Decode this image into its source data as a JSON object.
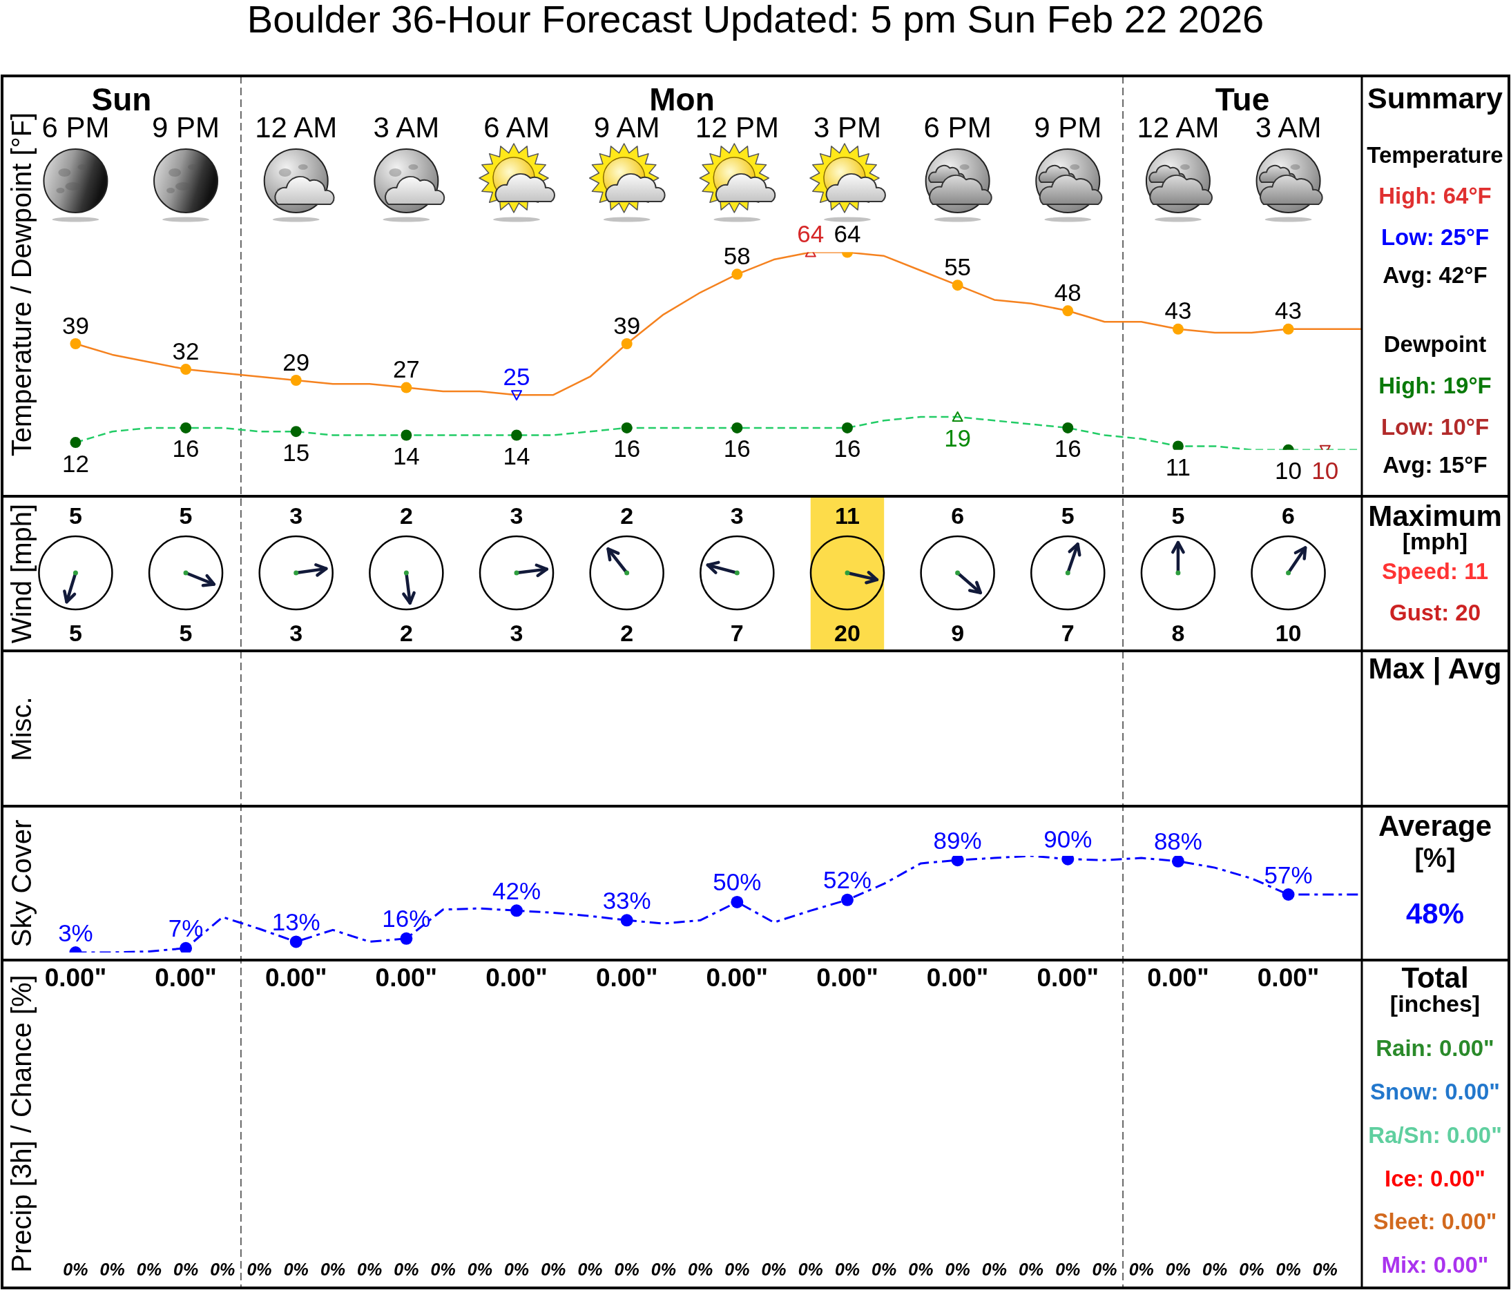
{
  "chart_data": [
    {
      "type": "line",
      "title": "Boulder 36-Hour Forecast Updated: 5 pm Sun Feb 22 2026",
      "ylabel": "Temperature / Dewpoint [°F]",
      "xlim": [
        "2026-02-22T16:00",
        "2026-02-24T05:00"
      ],
      "xticks": [
        {
          "value": "2026-02-22T18:00",
          "label": "6 PM"
        },
        {
          "value": "2026-02-22T21:00",
          "label": "9 PM"
        },
        {
          "value": "2026-02-23T00:00",
          "label": "12 AM"
        },
        {
          "value": "2026-02-23T03:00",
          "label": "3 AM"
        },
        {
          "value": "2026-02-23T06:00",
          "label": "6 AM"
        },
        {
          "value": "2026-02-23T09:00",
          "label": "9 AM"
        },
        {
          "value": "2026-02-23T12:00",
          "label": "12 PM"
        },
        {
          "value": "2026-02-23T15:00",
          "label": "3 PM"
        },
        {
          "value": "2026-02-23T18:00",
          "label": "6 PM"
        },
        {
          "value": "2026-02-23T21:00",
          "label": "9 PM"
        },
        {
          "value": "2026-02-24T00:00",
          "label": "12 AM"
        },
        {
          "value": "2026-02-24T03:00",
          "label": "3 AM"
        }
      ],
      "tick_labels": "x",
      "ref_lines": [
        {
          "axis": "x",
          "value": "2026-02-22T22:30",
          "color": "#666666",
          "line_style": "dashed"
        },
        {
          "axis": "x",
          "value": "2026-02-23T22:30",
          "color": "#666666",
          "line_style": "dashed"
        }
      ],
      "x": [
        "2026-02-22T18:00",
        "2026-02-22T19:00",
        "2026-02-22T20:00",
        "2026-02-22T21:00",
        "2026-02-22T22:00",
        "2026-02-22T23:00",
        "2026-02-23T00:00",
        "2026-02-23T01:00",
        "2026-02-23T02:00",
        "2026-02-23T03:00",
        "2026-02-23T04:00",
        "2026-02-23T05:00",
        "2026-02-23T06:00",
        "2026-02-23T07:00",
        "2026-02-23T08:00",
        "2026-02-23T09:00",
        "2026-02-23T10:00",
        "2026-02-23T11:00",
        "2026-02-23T12:00",
        "2026-02-23T13:00",
        "2026-02-23T14:00",
        "2026-02-23T15:00",
        "2026-02-23T16:00",
        "2026-02-23T17:00",
        "2026-02-23T18:00",
        "2026-02-23T19:00",
        "2026-02-23T20:00",
        "2026-02-23T21:00",
        "2026-02-23T22:00",
        "2026-02-23T23:00",
        "2026-02-24T00:00",
        "2026-02-24T01:00",
        "2026-02-24T02:00",
        "2026-02-24T03:00",
        "2026-02-24T04:00",
        "2026-02-24T05:00"
      ],
      "series": [
        {
          "type": "line",
          "color": "#f5821f",
          "marker": "none",
          "line_style": "solid",
          "values": [
            39,
            36,
            34,
            32,
            31,
            30,
            29,
            28,
            28,
            27,
            26,
            26,
            25,
            25,
            30,
            39,
            47,
            53,
            58,
            62,
            64,
            64,
            63,
            59,
            55,
            51,
            50,
            48,
            45,
            45,
            43,
            42,
            42,
            43,
            43,
            43
          ]
        },
        {
          "type": "line",
          "color": "#22cc66",
          "marker": "none",
          "line_style": "dashed",
          "values": [
            12,
            15,
            16,
            16,
            16,
            15,
            15,
            14,
            14,
            14,
            14,
            14,
            14,
            14,
            15,
            16,
            16,
            16,
            16,
            16,
            16,
            16,
            18,
            19,
            19,
            18,
            17,
            16,
            14,
            13,
            11,
            11,
            10,
            10,
            10,
            10
          ]
        },
        {
          "type": "scatter",
          "color": "#ffa500",
          "marker": "circle",
          "x": [
            "2026-02-22T18:00",
            "2026-02-22T21:00",
            "2026-02-23T00:00",
            "2026-02-23T03:00",
            "2026-02-23T09:00",
            "2026-02-23T12:00",
            "2026-02-23T15:00",
            "2026-02-23T18:00",
            "2026-02-23T21:00",
            "2026-02-24T00:00",
            "2026-02-24T03:00"
          ],
          "values": [
            39,
            32,
            29,
            27,
            39,
            58,
            64,
            55,
            48,
            43,
            43
          ],
          "value_labels": [
            "39",
            "32",
            "29",
            "27",
            "39",
            "58",
            "64",
            "55",
            "48",
            "43",
            "43"
          ]
        },
        {
          "type": "scatter",
          "color": "#006400",
          "marker": "circle",
          "x": [
            "2026-02-22T18:00",
            "2026-02-22T21:00",
            "2026-02-23T00:00",
            "2026-02-23T03:00",
            "2026-02-23T06:00",
            "2026-02-23T09:00",
            "2026-02-23T12:00",
            "2026-02-23T15:00",
            "2026-02-23T21:00",
            "2026-02-24T00:00",
            "2026-02-24T03:00"
          ],
          "values": [
            12,
            16,
            15,
            14,
            14,
            16,
            16,
            16,
            16,
            11,
            10
          ],
          "value_labels": [
            "12",
            "16",
            "15",
            "14",
            "14",
            "16",
            "16",
            "16",
            "16",
            "11",
            "10"
          ]
        },
        {
          "type": "scatter",
          "color": "#d62728",
          "marker": "triangle",
          "x": [
            "2026-02-23T14:00"
          ],
          "values": [
            64
          ],
          "value_labels": [
            "64"
          ]
        },
        {
          "type": "scatter",
          "color": "#0000ff",
          "marker": "triangle",
          "x": [
            "2026-02-23T06:00"
          ],
          "values": [
            25
          ],
          "value_labels": [
            "25"
          ]
        },
        {
          "type": "scatter",
          "color": "#0a8a0a",
          "marker": "triangle",
          "x": [
            "2026-02-23T18:00"
          ],
          "values": [
            19
          ],
          "value_labels": [
            "19"
          ]
        },
        {
          "type": "scatter",
          "color": "#b22222",
          "marker": "triangle",
          "x": [
            "2026-02-24T04:00"
          ],
          "values": [
            10
          ],
          "value_labels": [
            "10"
          ]
        }
      ],
      "annotations": [
        "Sun",
        "Mon",
        "Tue",
        "Summary",
        "Temperature",
        "High: 64°F",
        "Low: 25°F",
        "Avg: 42°F",
        "Dewpoint",
        "High: 19°F",
        "Low: 10°F",
        "Avg: 15°F"
      ]
    },
    {
      "type": "other",
      "ylabel": "Wind [mph]",
      "annotations": [
        "5",
        "5",
        "3",
        "2",
        "3",
        "2",
        "3",
        "11",
        "6",
        "5",
        "5",
        "6",
        "5",
        "5",
        "3",
        "2",
        "3",
        "2",
        "7",
        "20",
        "9",
        "7",
        "8",
        "10",
        "Maximum",
        "[mph]",
        "Speed: 11",
        "Gust: 20"
      ]
    },
    {
      "type": "other",
      "ylabel": "Misc.",
      "annotations": [
        "Max | Avg"
      ]
    },
    {
      "type": "line",
      "ylabel": "Sky Cover",
      "xlim": [
        "2026-02-22T16:00",
        "2026-02-24T05:00"
      ],
      "tick_labels": false,
      "x": [
        "2026-02-22T18:00",
        "2026-02-22T19:00",
        "2026-02-22T20:00",
        "2026-02-22T21:00",
        "2026-02-22T22:00",
        "2026-02-22T23:00",
        "2026-02-23T00:00",
        "2026-02-23T01:00",
        "2026-02-23T02:00",
        "2026-02-23T03:00",
        "2026-02-23T04:00",
        "2026-02-23T05:00",
        "2026-02-23T06:00",
        "2026-02-23T07:00",
        "2026-02-23T08:00",
        "2026-02-23T09:00",
        "2026-02-23T10:00",
        "2026-02-23T11:00",
        "2026-02-23T12:00",
        "2026-02-23T13:00",
        "2026-02-23T14:00",
        "2026-02-23T15:00",
        "2026-02-23T16:00",
        "2026-02-23T17:00",
        "2026-02-23T18:00",
        "2026-02-23T19:00",
        "2026-02-23T20:00",
        "2026-02-23T21:00",
        "2026-02-23T22:00",
        "2026-02-23T23:00",
        "2026-02-24T00:00",
        "2026-02-24T01:00",
        "2026-02-24T02:00",
        "2026-02-24T03:00",
        "2026-02-24T04:00",
        "2026-02-24T05:00"
      ],
      "series": [
        {
          "type": "line",
          "color": "#0000ff",
          "marker": "none",
          "line_style": "dashed",
          "values": [
            3,
            3,
            4,
            7,
            36,
            25,
            13,
            24,
            13,
            16,
            43,
            44,
            42,
            40,
            37,
            33,
            30,
            33,
            50,
            31,
            42,
            52,
            67,
            86,
            89,
            91,
            93,
            90,
            89,
            91,
            88,
            82,
            72,
            57,
            57,
            57
          ]
        },
        {
          "type": "scatter",
          "color": "#0000ff",
          "marker": "circle",
          "x": [
            "2026-02-22T18:00",
            "2026-02-22T21:00",
            "2026-02-23T00:00",
            "2026-02-23T03:00",
            "2026-02-23T06:00",
            "2026-02-23T09:00",
            "2026-02-23T12:00",
            "2026-02-23T15:00",
            "2026-02-23T18:00",
            "2026-02-23T21:00",
            "2026-02-24T00:00",
            "2026-02-24T03:00"
          ],
          "values": [
            3,
            7,
            13,
            16,
            42,
            33,
            50,
            52,
            89,
            90,
            88,
            57
          ],
          "value_labels": [
            "3%",
            "7%",
            "13%",
            "16%",
            "42%",
            "33%",
            "50%",
            "52%",
            "89%",
            "90%",
            "88%",
            "57%"
          ]
        }
      ],
      "annotations": [
        "Average",
        "[%]",
        "48%"
      ]
    },
    {
      "type": "other",
      "ylabel": "Precip [3h] / Chance [%]",
      "annotations": [
        "0.00\"",
        "0.00\"",
        "0.00\"",
        "0.00\"",
        "0.00\"",
        "0.00\"",
        "0.00\"",
        "0.00\"",
        "0.00\"",
        "0.00\"",
        "0.00\"",
        "0.00\"",
        "0%",
        "0%",
        "0%",
        "0%",
        "0%",
        "0%",
        "0%",
        "0%",
        "0%",
        "0%",
        "0%",
        "0%",
        "0%",
        "0%",
        "0%",
        "0%",
        "0%",
        "0%",
        "0%",
        "0%",
        "0%",
        "0%",
        "0%",
        "0%",
        "0%",
        "0%",
        "0%",
        "0%",
        "0%",
        "0%",
        "0%",
        "0%",
        "0%",
        "0%",
        "0%",
        "Total",
        "[inches]",
        "Rain: 0.00\"",
        "Snow: 0.00\"",
        "Ra/Sn: 0.00\"",
        "Ice: 0.00\"",
        "Sleet: 0.00\"",
        "Mix: 0.00\""
      ]
    }
  ]
}
